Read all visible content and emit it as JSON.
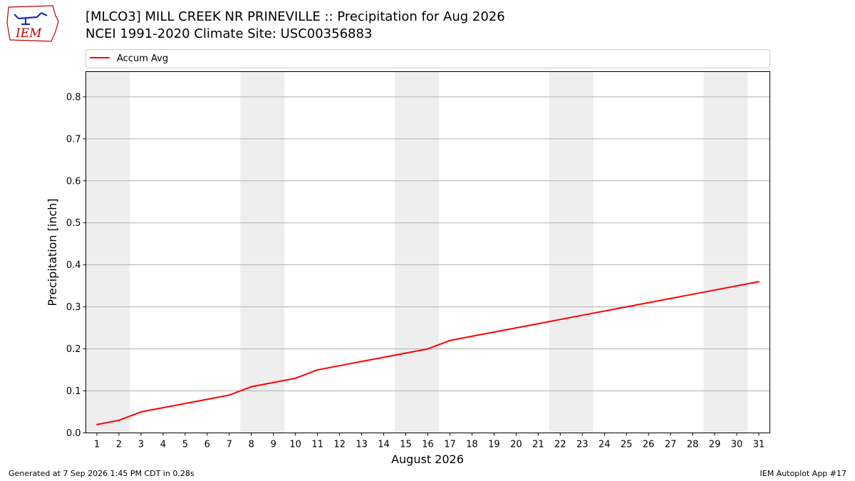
{
  "header": {
    "title_line1": "[MLCO3] MILL CREEK NR PRINEVILLE :: Precipitation for Aug 2026",
    "title_line2": "NCEI 1991-2020 Climate Site: USC00356883",
    "logo_text": "IEM"
  },
  "footer": {
    "generated": "Generated at 7 Sep 2026 1:45 PM CDT in 0.28s",
    "app": "IEM Autoplot App #17"
  },
  "chart_data": {
    "type": "line",
    "xlabel": "August 2026",
    "ylabel": "Precipitation [inch]",
    "xlim": [
      0.5,
      31.5
    ],
    "ylim": [
      0,
      0.86
    ],
    "yticks": [
      0.0,
      0.1,
      0.2,
      0.3,
      0.4,
      0.5,
      0.6,
      0.7,
      0.8
    ],
    "xticks": [
      1,
      2,
      3,
      4,
      5,
      6,
      7,
      8,
      9,
      10,
      11,
      12,
      13,
      14,
      15,
      16,
      17,
      18,
      19,
      20,
      21,
      22,
      23,
      24,
      25,
      26,
      27,
      28,
      29,
      30,
      31
    ],
    "grid": "horizontal",
    "legend_position": "top",
    "weekend_shading": [
      [
        1,
        2
      ],
      [
        8,
        9
      ],
      [
        15,
        16
      ],
      [
        22,
        23
      ],
      [
        29,
        30
      ]
    ],
    "shade_color": "#eeeeee",
    "series": [
      {
        "name": "Accum Avg",
        "color": "#ff0000",
        "x": [
          1,
          2,
          3,
          4,
          5,
          6,
          7,
          8,
          9,
          10,
          11,
          12,
          13,
          14,
          15,
          16,
          17,
          18,
          19,
          20,
          21,
          22,
          23,
          24,
          25,
          26,
          27,
          28,
          29,
          30,
          31
        ],
        "values": [
          0.02,
          0.03,
          0.05,
          0.06,
          0.07,
          0.08,
          0.09,
          0.11,
          0.12,
          0.13,
          0.15,
          0.16,
          0.17,
          0.18,
          0.19,
          0.2,
          0.22,
          0.23,
          0.24,
          0.25,
          0.26,
          0.27,
          0.28,
          0.29,
          0.3,
          0.31,
          0.32,
          0.33,
          0.34,
          0.35,
          0.36
        ]
      }
    ]
  }
}
